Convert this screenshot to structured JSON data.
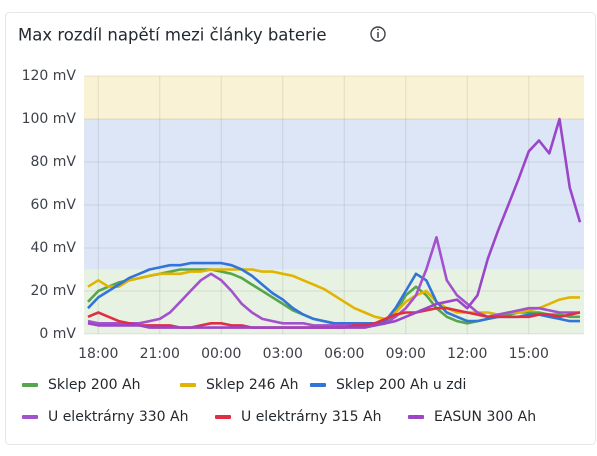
{
  "chart_data": {
    "type": "line",
    "title": "Max rozdíl napětí mezi články baterie",
    "x": [
      "17:30",
      "18:00",
      "18:30",
      "19:00",
      "19:30",
      "20:00",
      "20:30",
      "21:00",
      "21:30",
      "22:00",
      "22:30",
      "23:00",
      "23:30",
      "00:00",
      "00:30",
      "01:00",
      "01:30",
      "02:00",
      "02:30",
      "03:00",
      "03:30",
      "04:00",
      "04:30",
      "05:00",
      "05:30",
      "06:00",
      "06:30",
      "07:00",
      "07:30",
      "08:00",
      "08:30",
      "09:00",
      "09:30",
      "10:00",
      "10:30",
      "11:00",
      "11:30",
      "12:00",
      "12:30",
      "13:00",
      "13:30",
      "14:00",
      "14:30",
      "15:00",
      "15:30",
      "16:00",
      "16:30",
      "17:00",
      "17:30"
    ],
    "xticks": [
      "18:00",
      "21:00",
      "00:00",
      "03:00",
      "06:00",
      "09:00",
      "12:00",
      "15:00"
    ],
    "ylim": [
      0,
      120
    ],
    "yticks": [
      {
        "value": 0,
        "label": "0 mV"
      },
      {
        "value": 20,
        "label": "20 mV"
      },
      {
        "value": 40,
        "label": "40 mV"
      },
      {
        "value": 60,
        "label": "60 mV"
      },
      {
        "value": 80,
        "label": "80 mV"
      },
      {
        "value": 100,
        "label": "100 mV"
      },
      {
        "value": 120,
        "label": "120 mV"
      }
    ],
    "grid": true,
    "legend": "bottom",
    "thresholds": [
      {
        "from": 0,
        "to": 30,
        "color": "#e7f2e2"
      },
      {
        "from": 30,
        "to": 100,
        "color": "#dde6f6"
      },
      {
        "from": 100,
        "to": 120,
        "color": "#faf2d4"
      }
    ],
    "series": [
      {
        "name": "Sklep 200 Ah",
        "color": "#56a64b",
        "values": [
          15,
          20,
          22,
          24,
          25,
          26,
          27,
          28,
          29,
          30,
          30,
          30,
          30,
          29,
          28,
          26,
          23,
          20,
          17,
          14,
          11,
          9,
          7,
          6,
          5,
          5,
          5,
          4,
          4,
          5,
          10,
          18,
          22,
          18,
          12,
          8,
          6,
          5,
          6,
          7,
          8,
          9,
          10,
          10,
          10,
          9,
          9,
          8,
          8
        ]
      },
      {
        "name": "Sklep 246 Ah",
        "color": "#e0b400",
        "values": [
          22,
          25,
          22,
          22,
          25,
          26,
          27,
          28,
          28,
          28,
          29,
          29,
          30,
          30,
          30,
          30,
          30,
          29,
          29,
          28,
          27,
          25,
          23,
          21,
          18,
          15,
          12,
          10,
          8,
          7,
          10,
          15,
          18,
          20,
          15,
          12,
          10,
          10,
          10,
          10,
          9,
          10,
          10,
          11,
          12,
          14,
          16,
          17,
          17
        ]
      },
      {
        "name": "Sklep 200 Ah u zdi",
        "color": "#3274d9",
        "values": [
          12,
          17,
          20,
          23,
          26,
          28,
          30,
          31,
          32,
          32,
          33,
          33,
          33,
          33,
          32,
          30,
          27,
          23,
          19,
          16,
          12,
          9,
          7,
          6,
          5,
          5,
          5,
          5,
          5,
          6,
          12,
          20,
          28,
          25,
          15,
          10,
          8,
          6,
          6,
          7,
          8,
          8,
          8,
          9,
          9,
          8,
          7,
          6,
          6
        ]
      },
      {
        "name": "U elektrárny 330 Ah",
        "color": "#a352cc",
        "values": [
          6,
          5,
          5,
          5,
          5,
          5,
          6,
          7,
          10,
          15,
          20,
          25,
          28,
          25,
          20,
          14,
          10,
          7,
          6,
          5,
          5,
          5,
          4,
          4,
          4,
          4,
          4,
          4,
          4,
          5,
          8,
          12,
          18,
          30,
          45,
          25,
          18,
          14,
          10,
          8,
          9,
          10,
          11,
          12,
          12,
          11,
          10,
          10,
          10
        ]
      },
      {
        "name": "U elektrárny 315 Ah",
        "color": "#e02f44",
        "values": [
          8,
          10,
          8,
          6,
          5,
          4,
          4,
          4,
          4,
          3,
          3,
          4,
          5,
          5,
          4,
          4,
          3,
          3,
          3,
          3,
          3,
          3,
          3,
          3,
          3,
          3,
          4,
          4,
          5,
          7,
          9,
          10,
          10,
          11,
          12,
          12,
          11,
          10,
          9,
          8,
          8,
          8,
          8,
          8,
          9,
          9,
          8,
          9,
          10
        ]
      },
      {
        "name": "EASUN 300 Ah",
        "color": "#9b45c9",
        "values": [
          5,
          4,
          4,
          4,
          4,
          4,
          3,
          3,
          3,
          3,
          3,
          3,
          3,
          3,
          3,
          3,
          3,
          3,
          3,
          3,
          3,
          3,
          3,
          3,
          3,
          3,
          3,
          3,
          4,
          5,
          6,
          8,
          10,
          12,
          14,
          15,
          16,
          12,
          18,
          35,
          48,
          60,
          72,
          85,
          90,
          84,
          100,
          68,
          52
        ]
      }
    ]
  }
}
